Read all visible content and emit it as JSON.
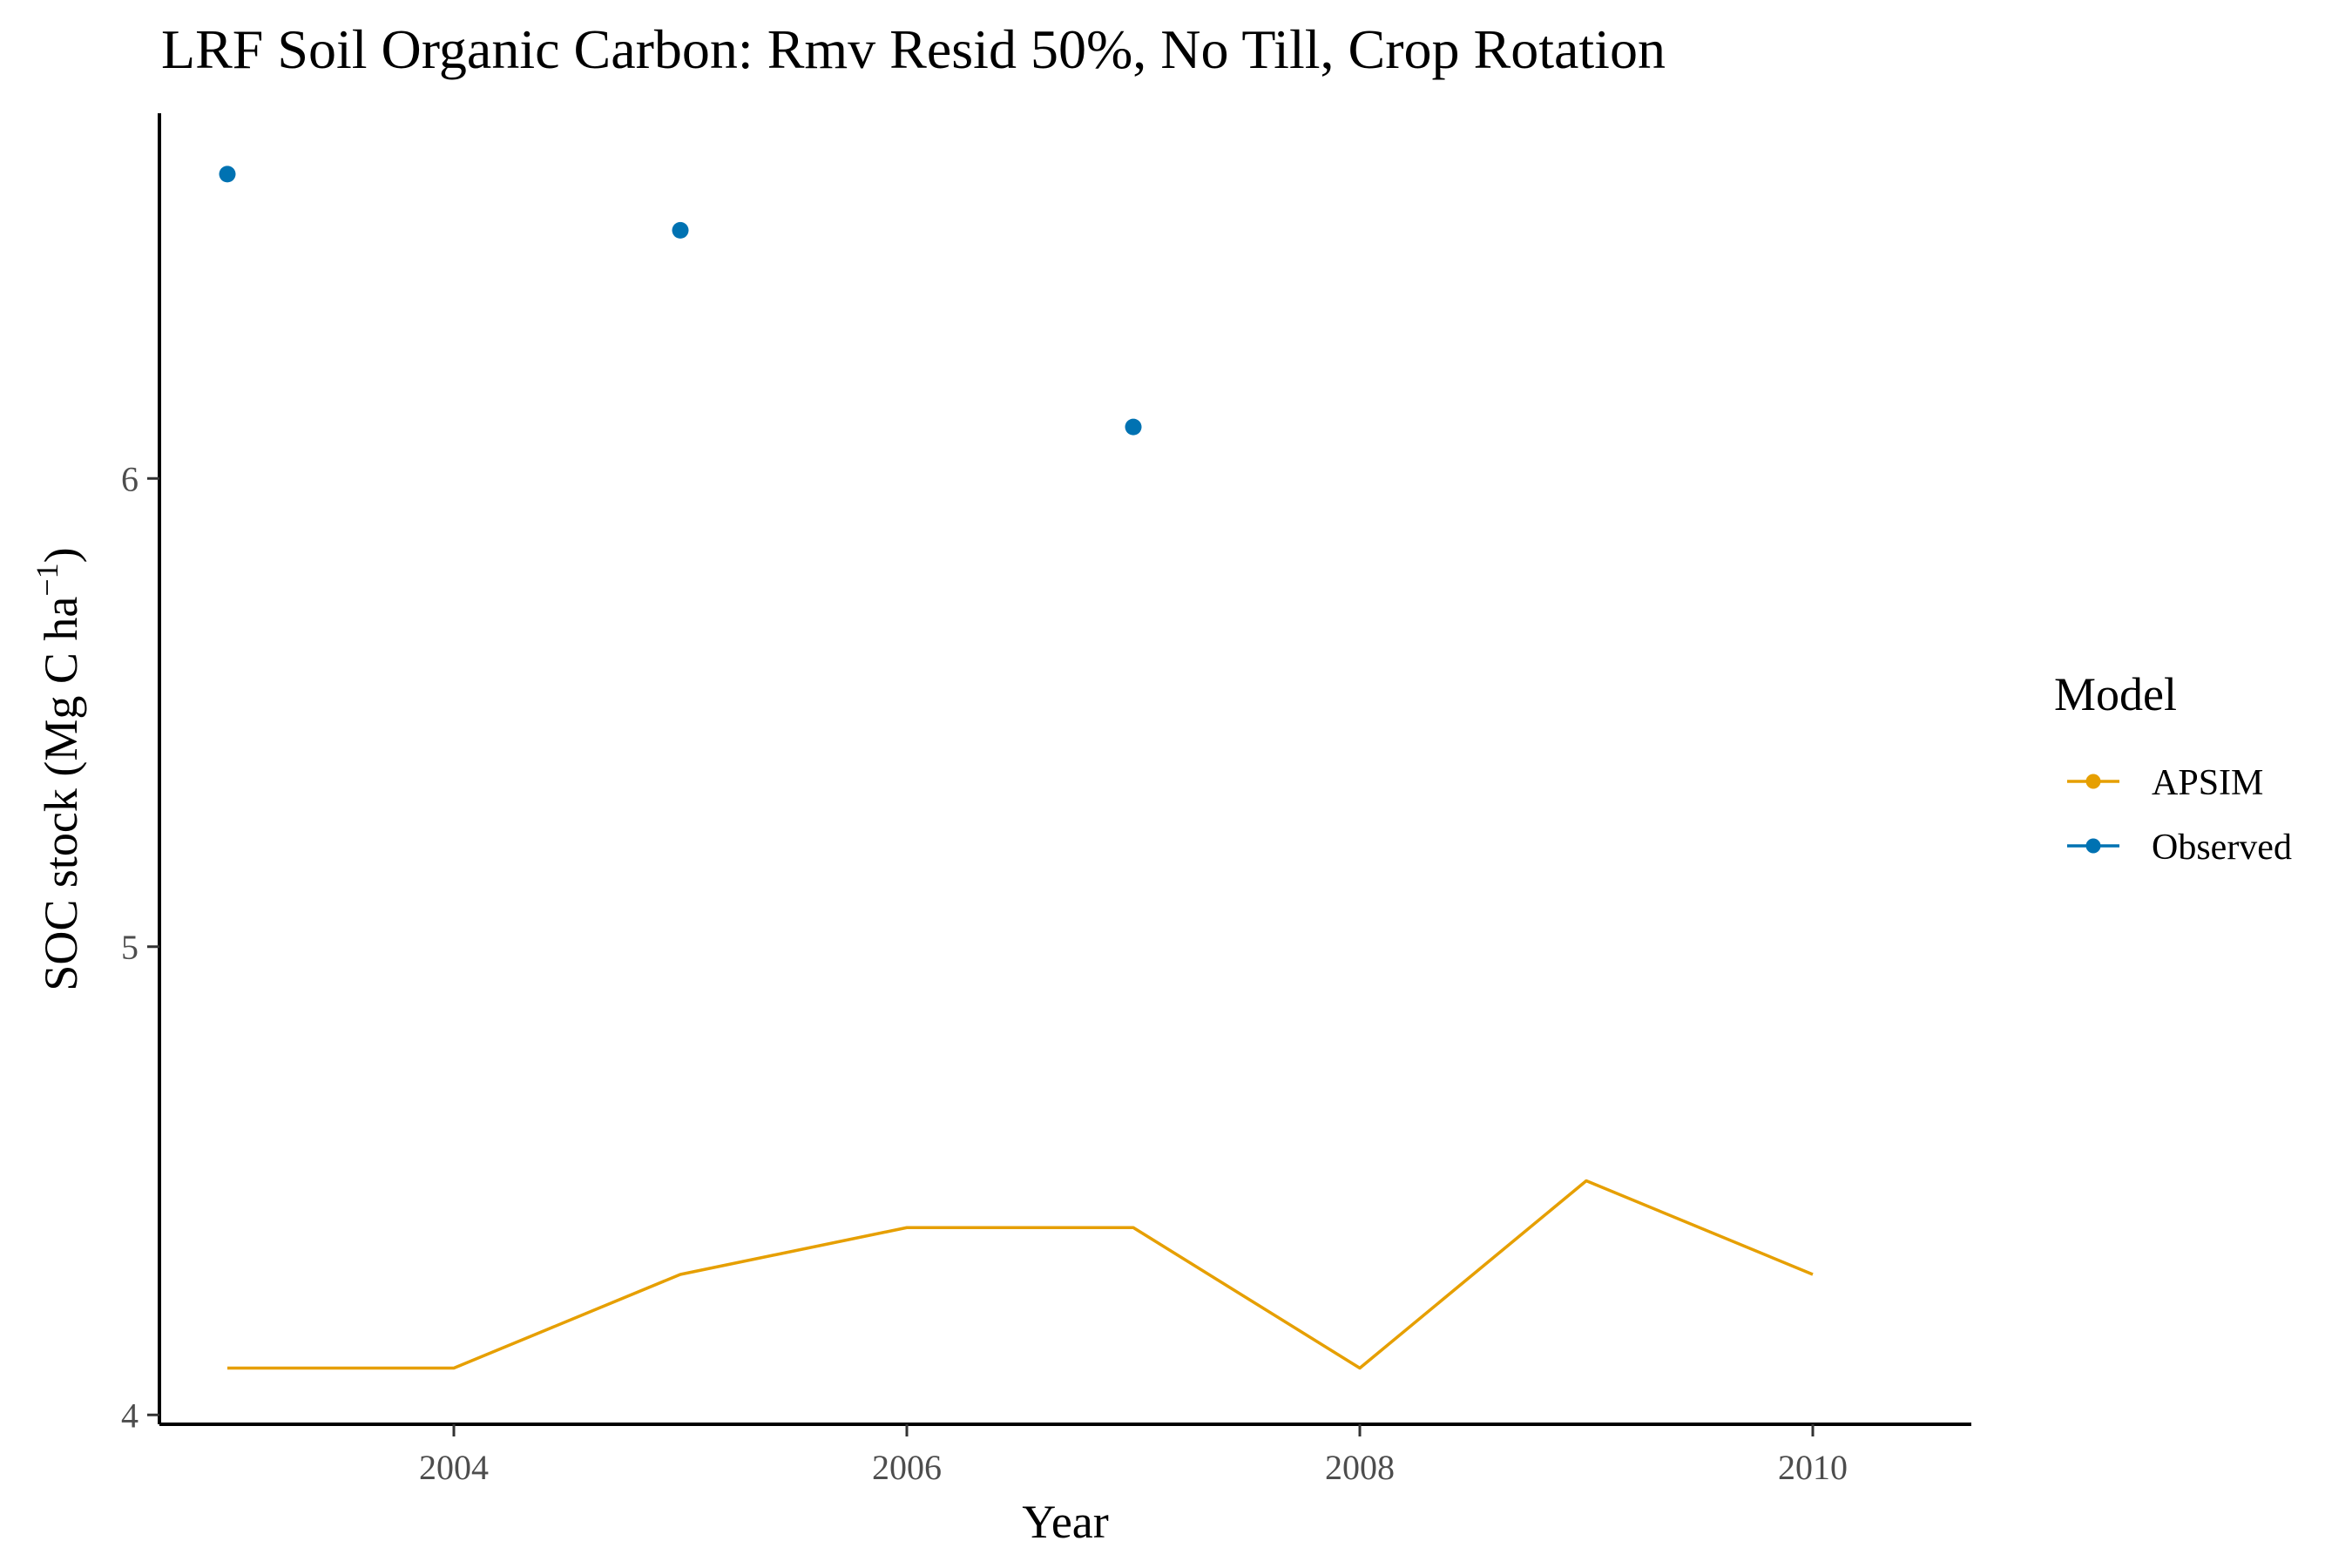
{
  "chart_data": {
    "type": "line",
    "title": "LRF Soil Organic Carbon:  Rmv Resid 50%, No Till, Crop Rotation",
    "xlabel": "Year",
    "ylabel": {
      "prefix": "SOC stock (Mg C ha",
      "superscript": "−1",
      "suffix": ")"
    },
    "xlim": [
      2002.7,
      2010.7
    ],
    "ylim": [
      3.98,
      6.78
    ],
    "x_ticks": [
      2004,
      2006,
      2008,
      2010
    ],
    "x_tick_labels": [
      "2004",
      "2006",
      "2008",
      "2010"
    ],
    "y_ticks": [
      4,
      5,
      6
    ],
    "y_tick_labels": [
      "4",
      "5",
      "6"
    ],
    "grid": false,
    "legend": {
      "title": "Model",
      "position": "right",
      "entries": [
        "APSIM",
        "Observed"
      ]
    },
    "series": [
      {
        "name": "APSIM",
        "kind": "line",
        "color": "#E69F00",
        "x": [
          2003,
          2004,
          2005,
          2006,
          2007,
          2008,
          2009,
          2010
        ],
        "y": [
          4.1,
          4.1,
          4.3,
          4.4,
          4.4,
          4.1,
          4.5,
          4.3
        ]
      },
      {
        "name": "Observed",
        "kind": "points",
        "color": "#0072B2",
        "x": [
          2003,
          2005,
          2007
        ],
        "y": [
          6.65,
          6.53,
          6.11
        ]
      }
    ]
  }
}
